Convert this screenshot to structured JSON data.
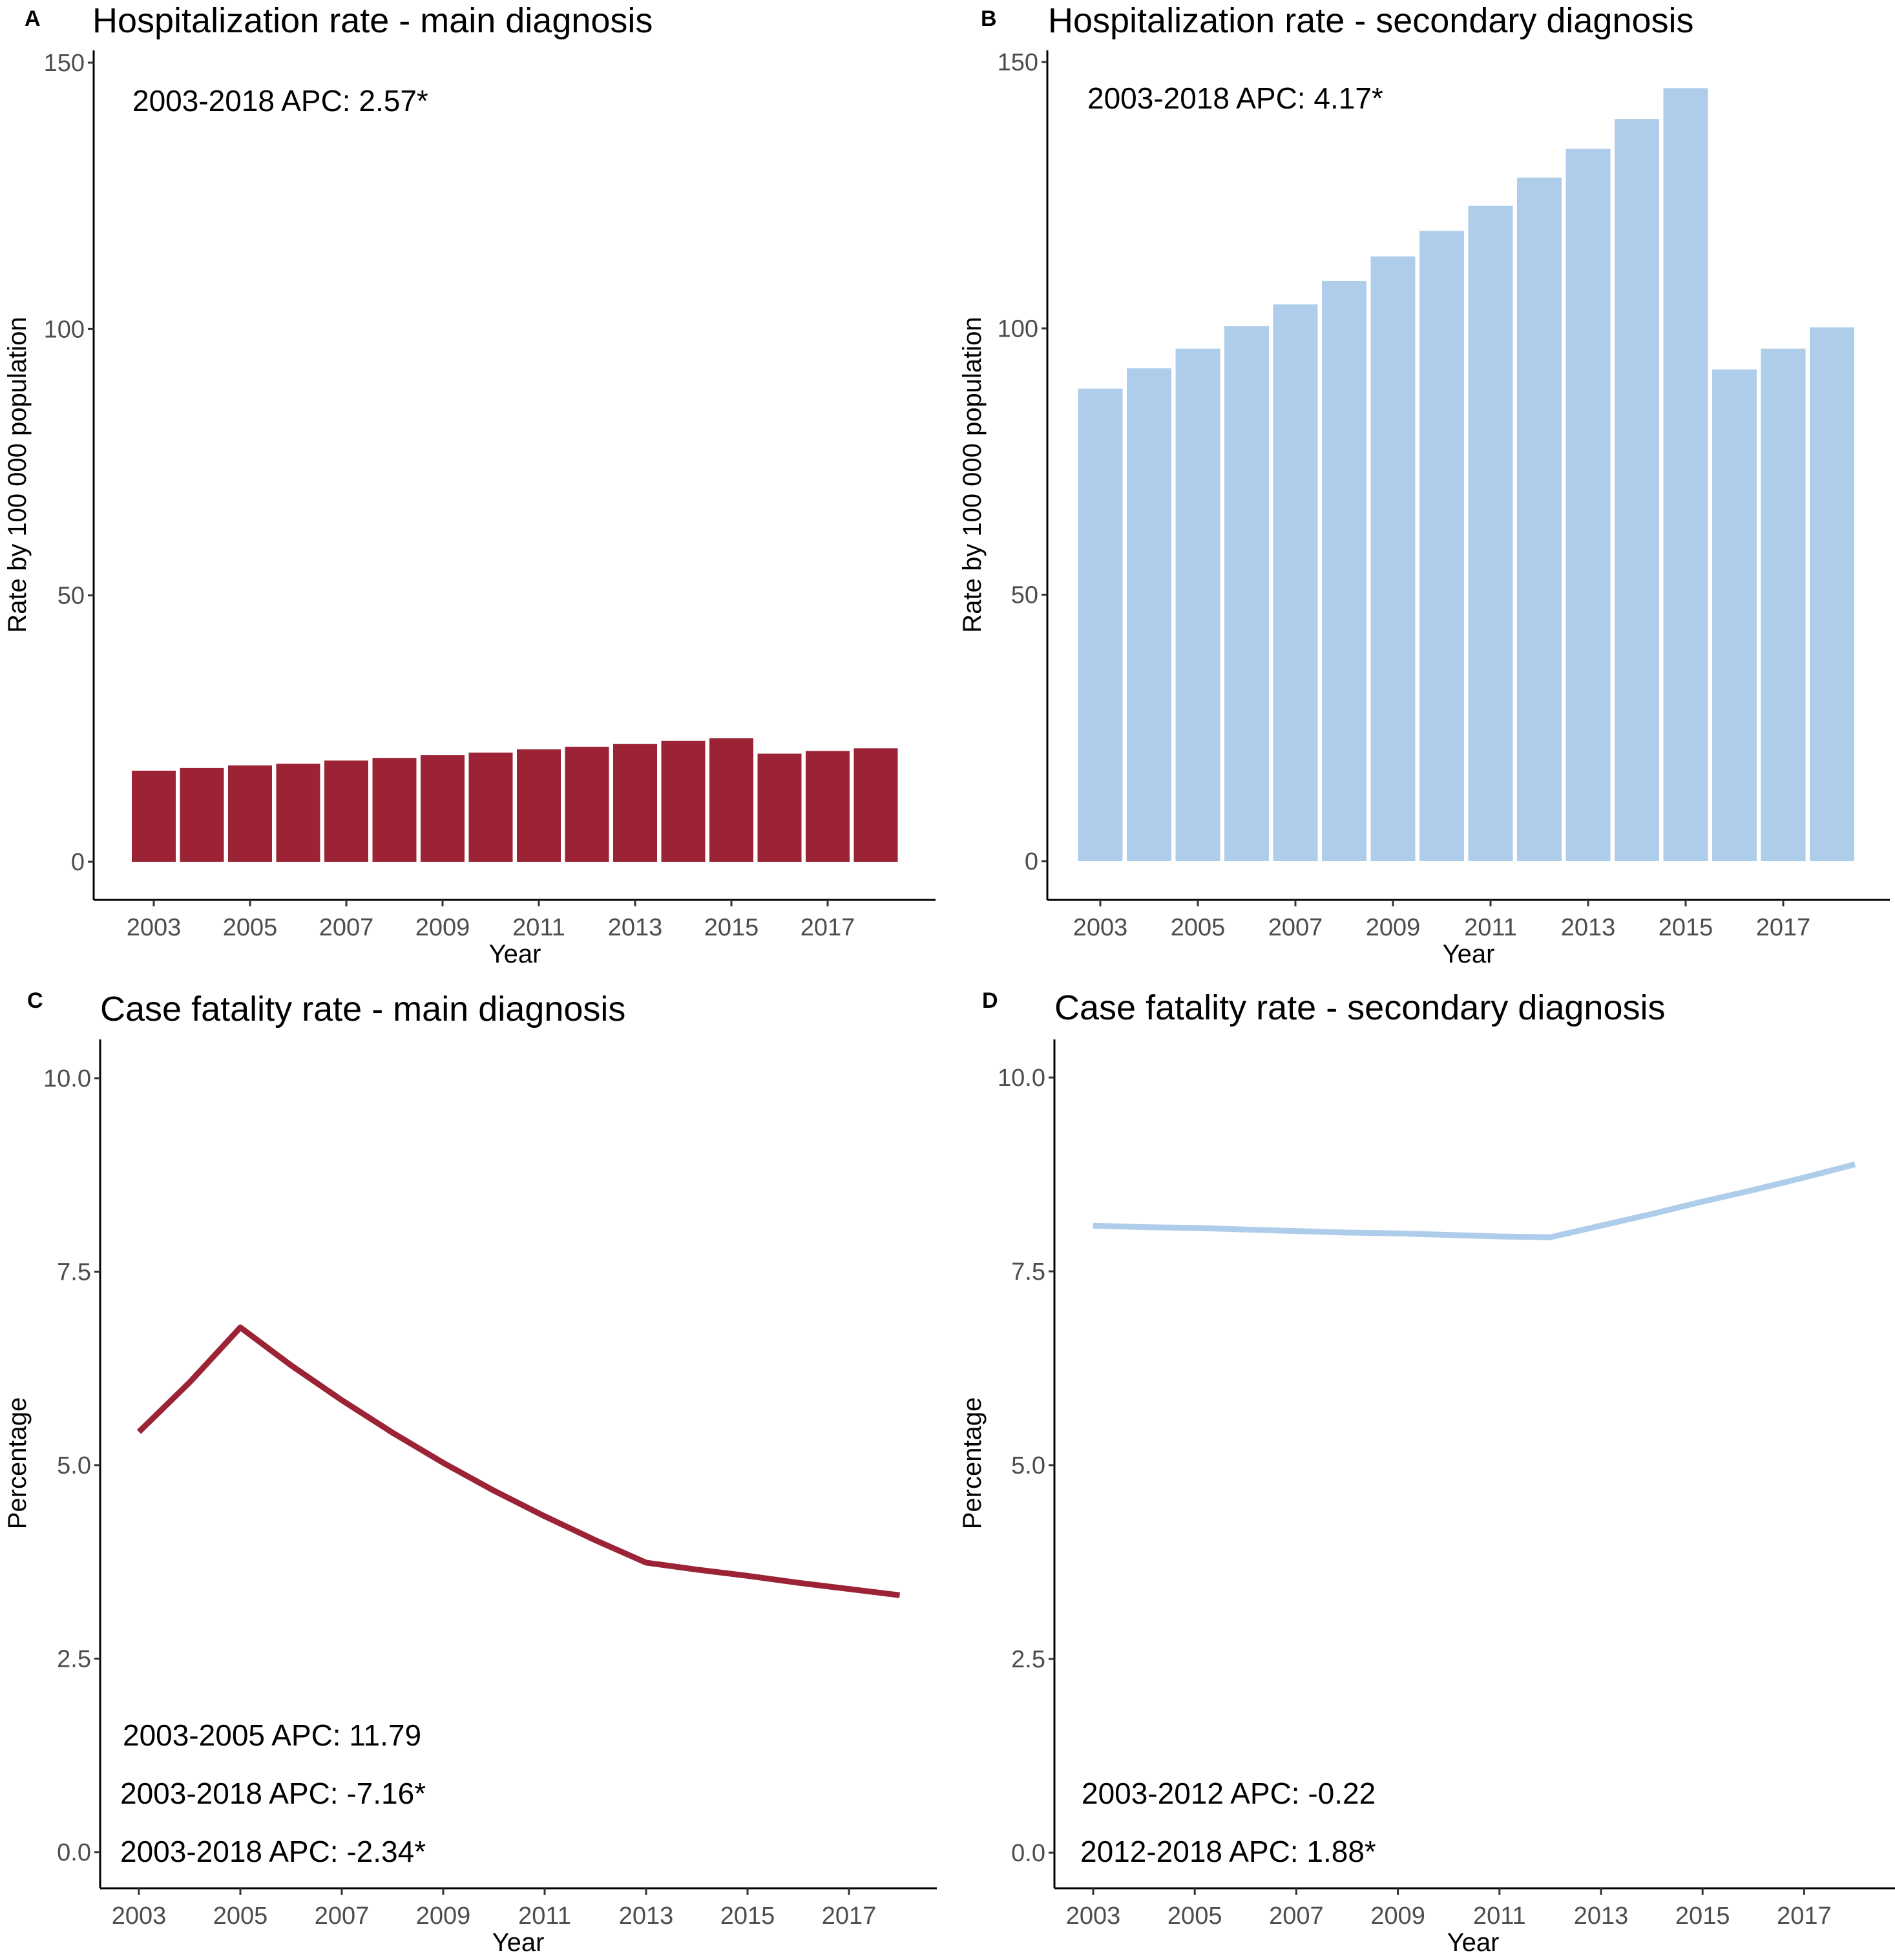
{
  "figure": {
    "colors": {
      "main": "#9B2335",
      "secondary": "#AECDEA"
    }
  },
  "chart_data": [
    {
      "id": "A",
      "type": "bar",
      "panel_letter": "A",
      "title": "Hospitalization rate - main diagnosis",
      "xlabel": "Year",
      "ylabel": "Rate by 100 000 population",
      "ylim": [
        0,
        150
      ],
      "yticks": [
        "0",
        "50",
        "100",
        "150"
      ],
      "ytick_values": [
        0,
        50,
        100,
        150
      ],
      "xticks": [
        "2003",
        "2005",
        "2007",
        "2009",
        "2011",
        "2013",
        "2015",
        "2017"
      ],
      "categories": [
        2003,
        2004,
        2005,
        2006,
        2007,
        2008,
        2009,
        2010,
        2011,
        2012,
        2013,
        2014,
        2015,
        2016,
        2017,
        2018
      ],
      "values": [
        17.1,
        17.6,
        18.1,
        18.4,
        19.0,
        19.5,
        20.0,
        20.5,
        21.1,
        21.6,
        22.1,
        22.7,
        23.2,
        20.3,
        20.8,
        21.3
      ],
      "color": "#9B2335",
      "annotations": [
        "2003-2018 APC: 2.57*"
      ],
      "grid": false
    },
    {
      "id": "B",
      "type": "bar",
      "panel_letter": "B",
      "title": "Hospitalization rate - secondary diagnosis",
      "xlabel": "Year",
      "ylabel": "Rate by 100 000 population",
      "ylim": [
        0,
        150
      ],
      "yticks": [
        "0",
        "50",
        "100",
        "150"
      ],
      "ytick_values": [
        0,
        50,
        100,
        150
      ],
      "xticks": [
        "2003",
        "2005",
        "2007",
        "2009",
        "2011",
        "2013",
        "2015",
        "2017"
      ],
      "categories": [
        2003,
        2004,
        2005,
        2006,
        2007,
        2008,
        2009,
        2010,
        2011,
        2012,
        2013,
        2014,
        2015,
        2016,
        2017,
        2018
      ],
      "values": [
        88.7,
        92.5,
        96.2,
        100.4,
        104.5,
        108.9,
        113.5,
        118.3,
        123.0,
        128.3,
        133.7,
        139.3,
        145.1,
        92.3,
        96.2,
        100.2
      ],
      "color": "#AECDEA",
      "annotations": [
        "2003-2018 APC: 4.17*"
      ],
      "grid": false
    },
    {
      "id": "C",
      "type": "line",
      "panel_letter": "C",
      "title": "Case fatality  rate - main diagnosis",
      "xlabel": "Year",
      "ylabel": "Percentage",
      "ylim": [
        0,
        10
      ],
      "yticks": [
        "0.0",
        "2.5",
        "5.0",
        "7.5",
        "10.0"
      ],
      "ytick_values": [
        0,
        2.5,
        5,
        7.5,
        10
      ],
      "xticks": [
        "2003",
        "2005",
        "2007",
        "2009",
        "2011",
        "2013",
        "2015",
        "2017"
      ],
      "x": [
        2003,
        2004,
        2005,
        2006,
        2007,
        2008,
        2009,
        2010,
        2011,
        2012,
        2013,
        2014,
        2015,
        2016,
        2017,
        2018
      ],
      "values": [
        5.43,
        6.07,
        6.78,
        6.29,
        5.84,
        5.42,
        5.03,
        4.67,
        4.34,
        4.03,
        3.74,
        3.65,
        3.57,
        3.48,
        3.4,
        3.32
      ],
      "color": "#9B2335",
      "annotations": [
        "2003-2005 APC: 11.79",
        "2003-2018 APC: -7.16*",
        "2003-2018 APC: -2.34*"
      ],
      "grid": false
    },
    {
      "id": "D",
      "type": "line",
      "panel_letter": "D",
      "title": "Case fatality rate - secondary diagnosis",
      "xlabel": "Year",
      "ylabel": "Percentage",
      "ylim": [
        0,
        10
      ],
      "yticks": [
        "0.0",
        "2.5",
        "5.0",
        "7.5",
        "10.0"
      ],
      "ytick_values": [
        0,
        2.5,
        5,
        7.5,
        10
      ],
      "xticks": [
        "2003",
        "2005",
        "2007",
        "2009",
        "2011",
        "2013",
        "2015",
        "2017"
      ],
      "x": [
        2003,
        2004,
        2005,
        2006,
        2007,
        2008,
        2009,
        2010,
        2011,
        2012,
        2013,
        2014,
        2015,
        2016,
        2017,
        2018
      ],
      "values": [
        8.09,
        8.07,
        8.06,
        8.04,
        8.02,
        8.0,
        7.99,
        7.97,
        7.95,
        7.94,
        8.09,
        8.24,
        8.4,
        8.55,
        8.71,
        8.88
      ],
      "color": "#AECDEA",
      "annotations": [
        "2003-2012 APC: -0.22",
        "2012-2018 APC: 1.88*"
      ],
      "grid": false
    }
  ]
}
